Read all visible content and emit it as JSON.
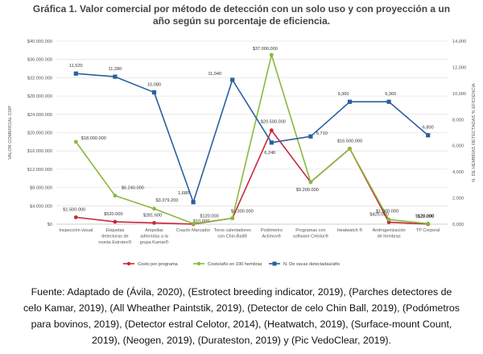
{
  "title_line1": "Gráfica 1. Valor comercial por método de detección con un solo uso y con proyección a un",
  "title_line2": "año según su porcentaje de eficiencia.",
  "source_line1": "Fuente: Adaptado de (Ávila, 2020), (Estrotect breeding indicator, 2019), (Parches detectores de",
  "source_line2": "celo Kamar, 2019), (All Wheather Paintstik, 2019), (Detector de celo Chin Ball, 2019), (Podómetros",
  "source_line3": "para bovinos, 2019), (Detector estral Celotor, 2014), (Heatwatch, 2019), (Surface-mount Count,",
  "source_line4": "2019), (Neogen, 2019), (Durateston, 2019) y  (Pic VedoClear, 2019).",
  "chart_data": {
    "type": "line",
    "categories": [
      [
        "Inspección visual"
      ],
      [
        "Etiquetas",
        "detectoras de",
        "monta Estrotec®"
      ],
      [
        "Ampollas",
        "adheridas a la",
        "grupa Kamar®"
      ],
      [
        "Crayón Marcador"
      ],
      [
        "Toros calentadores",
        "con Chin-Ball®"
      ],
      [
        "Podómetro",
        "Actimov®"
      ],
      [
        "Programas con",
        "software Celotor®"
      ],
      [
        "Heatwatch ®"
      ],
      [
        "Androgenización",
        "de hembras"
      ],
      [
        "TP Corporal"
      ]
    ],
    "ylabel": "VALOR COMERCIAL COP",
    "y2label": "N. DE HEMBRAS DETECTADAS % EFICIENCIA",
    "ylim": [
      0,
      40000000
    ],
    "y2lim": [
      0,
      14000
    ],
    "yticks": [
      "$0",
      "$4.000.000",
      "$8.000.000",
      "$12.000.000",
      "$16.000.000",
      "$20.000.000",
      "$24.000.000",
      "$28.000.000",
      "$32.000.000",
      "$36.000.000",
      "$40.000.000"
    ],
    "y2ticks": [
      "0,000",
      "2,000",
      "4,000",
      "6,000",
      "8,000",
      "10,000",
      "12,000",
      "14,000"
    ],
    "grid": true,
    "legend_position": "bottom",
    "series": [
      {
        "name": "Costo por programa",
        "color": "#c8283c",
        "axis": "left",
        "values": [
          1500000,
          520000,
          281600,
          10000,
          1300000,
          20500000,
          9200000,
          16500000,
          425000,
          20000
        ],
        "labels": [
          "$1.500.000",
          "$520.000",
          "$281.600",
          "$10.000",
          "$1.300.000",
          "$20.500.000",
          "$9.200.000",
          "$16.500.000",
          "$425.000",
          "$20.000"
        ]
      },
      {
        "name": "Costo/año en 100 hembras",
        "color": "#8bb83d",
        "axis": "left",
        "values": [
          18000000,
          6240000,
          3379200,
          120000,
          1300000,
          37000000,
          9200000,
          16500000,
          1000000,
          120000
        ],
        "labels": [
          "$18.000.000",
          "$6.240.000",
          "$3.379.200",
          "$120.000",
          "",
          "$37.000.000",
          "",
          "",
          "$1.000.000",
          "$120.000"
        ]
      },
      {
        "name": "N. De vacas detectadas/año",
        "color": "#2b5f9e",
        "axis": "right",
        "values": [
          11520,
          11280,
          10080,
          1680,
          11040,
          6240,
          6710,
          9360,
          9360,
          6800
        ],
        "labels": [
          "11,520",
          "11,280",
          "10,080",
          "1,680",
          "11,040",
          "6,240",
          "6,710",
          "9,360",
          "9,360",
          "6,800"
        ]
      }
    ]
  }
}
